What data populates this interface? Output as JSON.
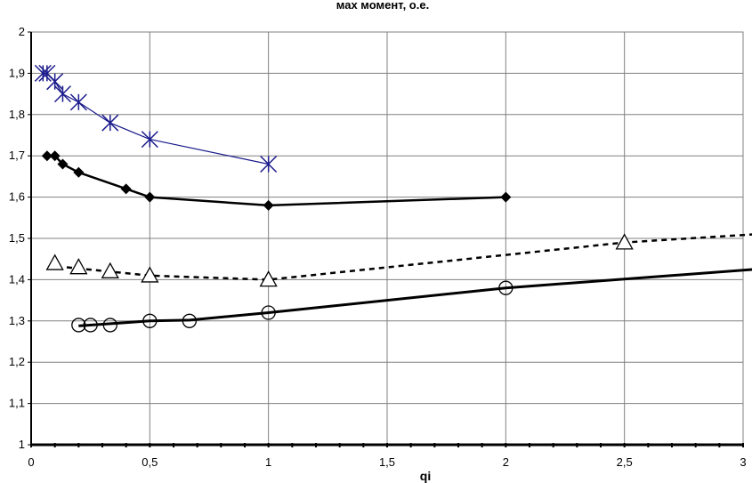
{
  "chart_data": {
    "type": "line",
    "title": "мах момент, о.е.",
    "xlabel": "qi",
    "ylabel": "",
    "xlim": [
      0,
      3
    ],
    "ylim": [
      1,
      2
    ],
    "grid": true,
    "legend": "none",
    "x_ticks": [
      {
        "v": 0,
        "label": "0"
      },
      {
        "v": 0.5,
        "label": "0,5"
      },
      {
        "v": 1,
        "label": "1"
      },
      {
        "v": 1.5,
        "label": "1,5"
      },
      {
        "v": 2,
        "label": "2"
      },
      {
        "v": 2.5,
        "label": "2,5"
      },
      {
        "v": 3,
        "label": "3"
      }
    ],
    "y_ticks": [
      {
        "v": 1,
        "label": "1"
      },
      {
        "v": 1.1,
        "label": "1,1"
      },
      {
        "v": 1.2,
        "label": "1,2"
      },
      {
        "v": 1.3,
        "label": "1,3"
      },
      {
        "v": 1.4,
        "label": "1,4"
      },
      {
        "v": 1.5,
        "label": "1,5"
      },
      {
        "v": 1.6,
        "label": "1,6"
      },
      {
        "v": 1.7,
        "label": "1,7"
      },
      {
        "v": 1.8,
        "label": "1,8"
      },
      {
        "v": 1.9,
        "label": "1,9"
      },
      {
        "v": 2,
        "label": "2"
      }
    ],
    "series": [
      {
        "name": "asterisk-series",
        "marker": "asterisk",
        "line": "thin",
        "color": "#1a1a8c",
        "points": [
          [
            0.05,
            1.9
          ],
          [
            0.067,
            1.9
          ],
          [
            0.1,
            1.88
          ],
          [
            0.133,
            1.85
          ],
          [
            0.2,
            1.83
          ],
          [
            0.333,
            1.78
          ],
          [
            0.5,
            1.74
          ],
          [
            1.0,
            1.68
          ]
        ]
      },
      {
        "name": "diamond-series",
        "marker": "diamond",
        "line": "medium",
        "color": "#000000",
        "points": [
          [
            0.067,
            1.7
          ],
          [
            0.1,
            1.7
          ],
          [
            0.133,
            1.68
          ],
          [
            0.2,
            1.66
          ],
          [
            0.4,
            1.62
          ],
          [
            0.5,
            1.6
          ],
          [
            1.0,
            1.58
          ],
          [
            2.0,
            1.6
          ]
        ]
      },
      {
        "name": "triangle-series",
        "marker": "triangle",
        "line": "dashed",
        "color": "#000000",
        "points": [
          [
            0.1,
            1.44
          ],
          [
            0.2,
            1.43
          ],
          [
            0.333,
            1.42
          ],
          [
            0.5,
            1.41
          ],
          [
            1.0,
            1.4
          ],
          [
            2.5,
            1.49
          ]
        ],
        "trend": [
          [
            0.15,
            1.43
          ],
          [
            0.5,
            1.41
          ],
          [
            1.0,
            1.4
          ],
          [
            1.5,
            1.43
          ],
          [
            2.0,
            1.46
          ],
          [
            2.5,
            1.49
          ],
          [
            3.05,
            1.51
          ]
        ]
      },
      {
        "name": "circle-series",
        "marker": "circle",
        "line": "thick",
        "color": "#000000",
        "points": [
          [
            0.2,
            1.29
          ],
          [
            0.25,
            1.29
          ],
          [
            0.333,
            1.29
          ],
          [
            0.5,
            1.3
          ],
          [
            0.667,
            1.3
          ],
          [
            1.0,
            1.32
          ],
          [
            2.0,
            1.38
          ]
        ],
        "trend": [
          [
            0.2,
            1.288
          ],
          [
            0.5,
            1.3
          ],
          [
            0.667,
            1.302
          ],
          [
            1.0,
            1.32
          ],
          [
            2.0,
            1.38
          ],
          [
            3.05,
            1.425
          ]
        ]
      }
    ]
  }
}
